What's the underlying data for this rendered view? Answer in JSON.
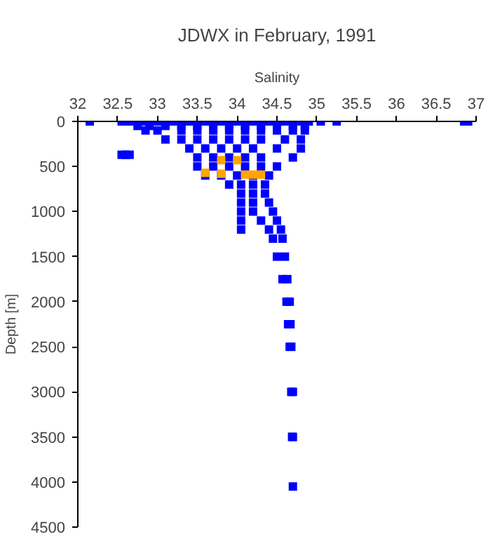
{
  "chart_data": {
    "type": "scatter",
    "title": "JDWX in February, 1991",
    "xlabel": "Salinity",
    "ylabel": "Depth [m]",
    "xlim": [
      32,
      37
    ],
    "ylim": [
      4500,
      0
    ],
    "xticks": [
      32,
      32.5,
      33,
      33.5,
      34,
      34.5,
      35,
      35.5,
      36,
      36.5,
      37
    ],
    "yticks": [
      0,
      500,
      1000,
      1500,
      2000,
      2500,
      3000,
      3500,
      4000,
      4500
    ],
    "grid": false,
    "marker": "square",
    "series": [
      {
        "color": "#0000ff",
        "x": [
          32.15,
          32.55,
          32.65,
          35.05,
          35.25,
          36.85,
          36.9,
          32.55,
          32.6,
          32.65,
          32.8,
          33.0,
          33.2,
          33.4,
          33.6,
          33.8,
          34.0,
          34.2,
          34.4,
          34.6,
          34.8,
          34.9,
          32.75,
          32.9,
          33.1,
          33.3,
          33.5,
          33.7,
          33.9,
          34.1,
          34.3,
          34.5,
          34.7,
          34.85,
          32.85,
          33.0,
          33.3,
          33.5,
          33.7,
          33.9,
          34.1,
          34.3,
          34.5,
          34.7,
          34.85,
          33.1,
          33.3,
          33.5,
          33.7,
          33.9,
          34.1,
          34.3,
          34.6,
          34.8,
          33.4,
          33.6,
          33.8,
          34.0,
          34.2,
          34.5,
          34.8,
          33.5,
          33.7,
          33.9,
          34.1,
          34.3,
          34.7,
          33.5,
          33.7,
          33.9,
          34.1,
          34.3,
          34.5,
          33.6,
          33.8,
          34.0,
          34.2,
          34.4,
          33.9,
          34.05,
          34.2,
          34.35,
          34.05,
          34.2,
          34.35,
          34.05,
          34.2,
          34.4,
          34.05,
          34.2,
          34.45,
          34.05,
          34.3,
          34.5,
          34.05,
          34.4,
          34.55,
          34.45,
          34.57,
          34.5,
          34.6,
          34.57,
          34.63,
          34.62,
          34.66,
          34.64,
          34.67,
          34.66,
          34.68,
          34.68,
          34.7,
          34.69,
          34.7,
          34.7
        ],
        "values": [
          0,
          0,
          0,
          0,
          0,
          0,
          0,
          370,
          370,
          370,
          0,
          0,
          0,
          0,
          0,
          0,
          0,
          0,
          0,
          0,
          0,
          0,
          50,
          50,
          50,
          50,
          50,
          50,
          50,
          50,
          50,
          50,
          50,
          50,
          100,
          100,
          100,
          100,
          100,
          100,
          100,
          100,
          100,
          100,
          100,
          200,
          200,
          200,
          200,
          200,
          200,
          200,
          200,
          200,
          300,
          300,
          300,
          300,
          300,
          300,
          300,
          400,
          400,
          400,
          400,
          400,
          400,
          500,
          500,
          500,
          500,
          500,
          500,
          600,
          600,
          600,
          600,
          600,
          700,
          700,
          700,
          700,
          800,
          800,
          800,
          900,
          900,
          900,
          1000,
          1000,
          1000,
          1100,
          1100,
          1100,
          1200,
          1200,
          1200,
          1300,
          1300,
          1500,
          1500,
          1750,
          1750,
          2000,
          2000,
          2250,
          2250,
          2500,
          2500,
          3000,
          3000,
          3500,
          3500,
          4050
        ]
      },
      {
        "color": "#ffa500",
        "x": [
          33.8,
          34.0,
          33.6,
          33.8,
          34.1,
          34.2,
          34.3
        ],
        "values": [
          430,
          430,
          570,
          580,
          590,
          590,
          590
        ]
      }
    ]
  }
}
